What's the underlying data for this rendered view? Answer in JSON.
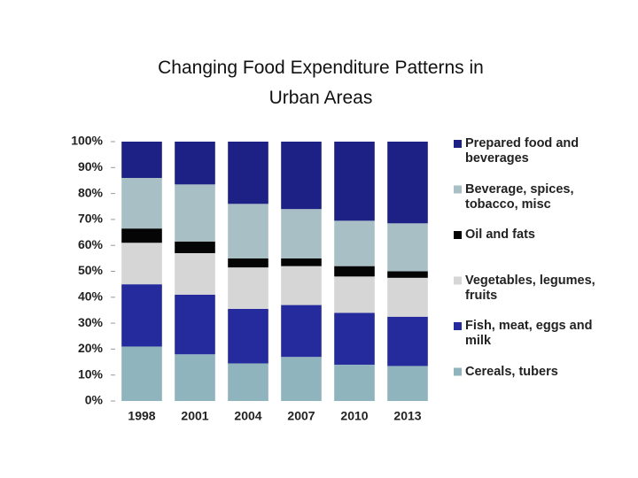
{
  "chart_data": {
    "type": "stacked_bar",
    "title": "Changing Food Expenditure Patterns in Urban Areas",
    "categories": [
      "1998",
      "2001",
      "2004",
      "2007",
      "2010",
      "2013"
    ],
    "series": [
      {
        "name": "Cereals, tubers",
        "color": "#8fb4bd",
        "values": [
          21,
          18,
          14.5,
          17,
          14,
          13.5
        ]
      },
      {
        "name": "Fish, meat, eggs and milk",
        "color": "#252a9c",
        "values": [
          24,
          23,
          21,
          20,
          20,
          19
        ]
      },
      {
        "name": "Vegetables, legumes, fruits",
        "color": "#d6d6d6",
        "values": [
          16,
          16,
          16,
          15,
          14,
          15
        ]
      },
      {
        "name": "Oil and fats",
        "color": "#050505",
        "values": [
          5.5,
          4.5,
          3.5,
          3,
          4,
          2.5
        ]
      },
      {
        "name": "Beverage, spices, tobacco, misc",
        "color": "#a9bfc6",
        "values": [
          19.5,
          22,
          21,
          19,
          17.5,
          18.5
        ]
      },
      {
        "name": "Prepared food and beverages",
        "color": "#1d2185",
        "values": [
          14,
          16.5,
          24,
          26,
          30.5,
          31.5
        ]
      }
    ],
    "ylim": [
      0,
      100
    ],
    "yticks": [
      {
        "value": 0,
        "label": "0%"
      },
      {
        "value": 10,
        "label": "10%"
      },
      {
        "value": 20,
        "label": "20%"
      },
      {
        "value": 30,
        "label": "30%"
      },
      {
        "value": 40,
        "label": "40%"
      },
      {
        "value": 50,
        "label": "50%"
      },
      {
        "value": 60,
        "label": "60%"
      },
      {
        "value": 70,
        "label": "70%"
      },
      {
        "value": 80,
        "label": "80%"
      },
      {
        "value": 90,
        "label": "90%"
      },
      {
        "value": 100,
        "label": "100%"
      }
    ],
    "legend": "right",
    "grid": false
  }
}
